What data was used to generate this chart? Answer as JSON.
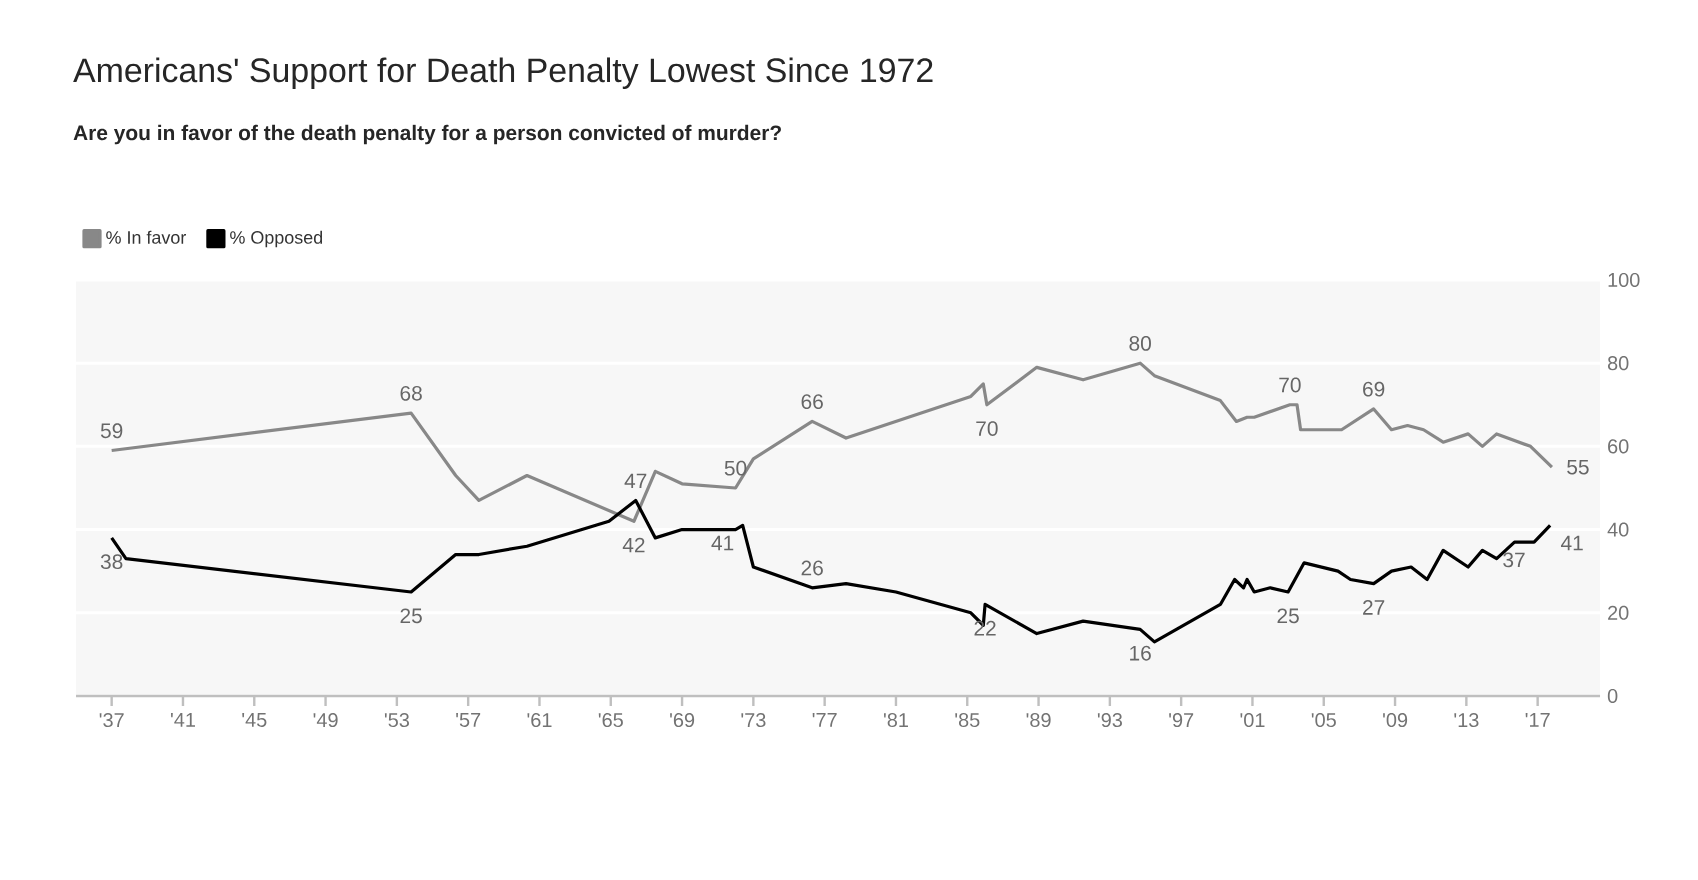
{
  "chart_data": {
    "type": "line",
    "title": "Americans' Support for Death Penalty Lowest Since 1972",
    "subtitle": "Are you in favor of the death penalty for a person convicted of murder?",
    "xlim": [
      1935,
      2020.5
    ],
    "ylim": [
      0,
      100
    ],
    "xticks": [
      {
        "value": 1937,
        "label": "'37"
      },
      {
        "value": 1941,
        "label": "'41"
      },
      {
        "value": 1945,
        "label": "'45"
      },
      {
        "value": 1949,
        "label": "'49"
      },
      {
        "value": 1953,
        "label": "'53"
      },
      {
        "value": 1957,
        "label": "'57"
      },
      {
        "value": 1961,
        "label": "'61"
      },
      {
        "value": 1965,
        "label": "'65"
      },
      {
        "value": 1969,
        "label": "'69"
      },
      {
        "value": 1973,
        "label": "'73"
      },
      {
        "value": 1977,
        "label": "'77"
      },
      {
        "value": 1981,
        "label": "'81"
      },
      {
        "value": 1985,
        "label": "'85"
      },
      {
        "value": 1989,
        "label": "'89"
      },
      {
        "value": 1993,
        "label": "'93"
      },
      {
        "value": 1997,
        "label": "'97"
      },
      {
        "value": 2001,
        "label": "'01"
      },
      {
        "value": 2005,
        "label": "'05"
      },
      {
        "value": 2009,
        "label": "'09"
      },
      {
        "value": 2013,
        "label": "'13"
      },
      {
        "value": 2017,
        "label": "'17"
      }
    ],
    "yticks": [
      0,
      20,
      40,
      60,
      80,
      100
    ],
    "grid": "y",
    "legend": "top left",
    "marker": "none",
    "line_style": "solid",
    "series": [
      {
        "name": "% In favor",
        "color": "#888888",
        "x": [
          1937,
          1953.8,
          1956.3,
          1957.6,
          1960.3,
          1966.3,
          1967.5,
          1969,
          1972,
          1973,
          1976.3,
          1978.2,
          1985.2,
          1985.9,
          1986.1,
          1988.9,
          1991.5,
          1994.7,
          1995.5,
          1999.2,
          2000.1,
          2000.7,
          2001.1,
          2003.1,
          2003.5,
          2003.7,
          2006,
          2007.8,
          2008.8,
          2009.7,
          2010.6,
          2011.7,
          2013.1,
          2013.9,
          2014.7,
          2016.6,
          2017.8
        ],
        "values": [
          59,
          68,
          53,
          47,
          53,
          42,
          54,
          51,
          50,
          57,
          66,
          62,
          72,
          75,
          70,
          79,
          76,
          80,
          77,
          71,
          66,
          67,
          67,
          70,
          70,
          64,
          64,
          69,
          64,
          65,
          64,
          61,
          63,
          60,
          63,
          60,
          55
        ]
      },
      {
        "name": "% Opposed",
        "color": "#000000",
        "x": [
          1937,
          1937.8,
          1953.8,
          1956.3,
          1957.6,
          1960.3,
          1964.9,
          1966.4,
          1967.5,
          1969,
          1972,
          1972.4,
          1973,
          1976.3,
          1978.2,
          1981,
          1985.2,
          1985.9,
          1986,
          1988.9,
          1991.5,
          1994.7,
          1995.5,
          1999.2,
          2000,
          2000.5,
          2000.7,
          2001.1,
          2002,
          2003,
          2003.9,
          2005.8,
          2006.5,
          2007.8,
          2008.8,
          2009.9,
          2010.8,
          2011.7,
          2013.1,
          2013.9,
          2014.7,
          2015.7,
          2016.8,
          2017.7
        ],
        "values": [
          38,
          33,
          25,
          34,
          34,
          36,
          42,
          47,
          38,
          40,
          40,
          41,
          31,
          26,
          27,
          25,
          20,
          17,
          22,
          15,
          18,
          16,
          13,
          22,
          28,
          26,
          28,
          25,
          26,
          25,
          32,
          30,
          28,
          27,
          30,
          31,
          28,
          35,
          31,
          35,
          33,
          37,
          37,
          41
        ]
      }
    ],
    "annotations": [
      {
        "text": "59",
        "x": 1937,
        "y": 59
      },
      {
        "text": "38",
        "x": 1937,
        "y": 38
      },
      {
        "text": "68",
        "x": 1953.8,
        "y": 68
      },
      {
        "text": "25",
        "x": 1953.8,
        "y": 25
      },
      {
        "text": "47",
        "x": 1966.4,
        "y": 47
      },
      {
        "text": "42",
        "x": 1966.3,
        "y": 42
      },
      {
        "text": "50",
        "x": 1972,
        "y": 50
      },
      {
        "text": "41",
        "x": 1972.4,
        "y": 41
      },
      {
        "text": "66",
        "x": 1976.3,
        "y": 66
      },
      {
        "text": "26",
        "x": 1976.3,
        "y": 26
      },
      {
        "text": "70",
        "x": 1986.1,
        "y": 70
      },
      {
        "text": "22",
        "x": 1986,
        "y": 22
      },
      {
        "text": "80",
        "x": 1994.7,
        "y": 80
      },
      {
        "text": "16",
        "x": 1994.7,
        "y": 16
      },
      {
        "text": "70",
        "x": 2003.1,
        "y": 70
      },
      {
        "text": "25",
        "x": 2003,
        "y": 25
      },
      {
        "text": "69",
        "x": 2007.8,
        "y": 69
      },
      {
        "text": "27",
        "x": 2007.8,
        "y": 27
      },
      {
        "text": "55",
        "x": 2017.8,
        "y": 55
      },
      {
        "text": "37",
        "x": 2016.8,
        "y": 37
      },
      {
        "text": "41",
        "x": 2017.7,
        "y": 41
      }
    ]
  }
}
